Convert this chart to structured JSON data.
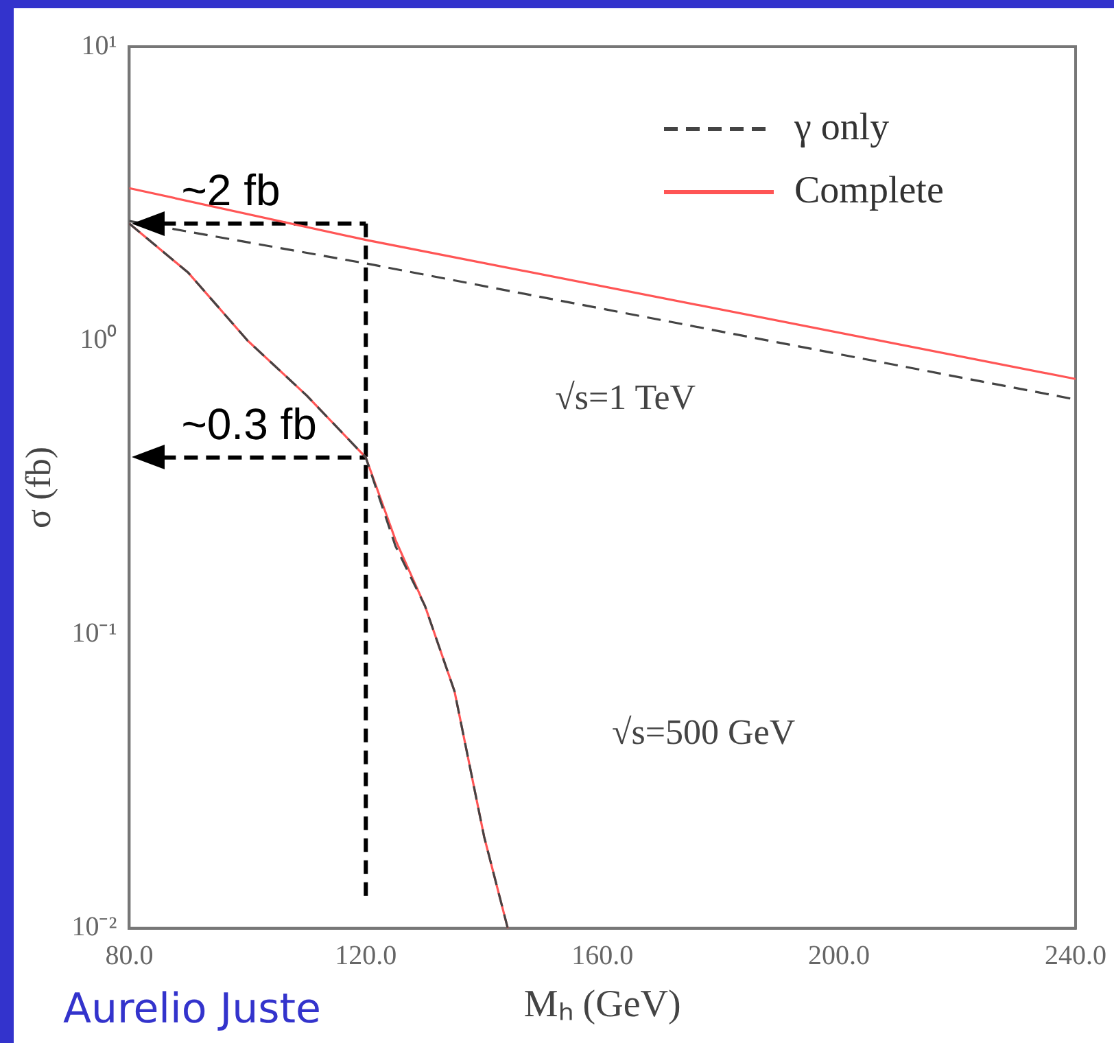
{
  "chart_data": {
    "type": "line",
    "xlabel": "Mₕ (GeV)",
    "ylabel": "σ (fb)",
    "log": "y",
    "grid": false,
    "legend": "top right",
    "marker": "none",
    "xlim": [
      80,
      240
    ],
    "xticks": [
      {
        "value": 80,
        "label": "80.0"
      },
      {
        "value": 120,
        "label": "120.0"
      },
      {
        "value": 160,
        "label": "160.0"
      },
      {
        "value": 200,
        "label": "200.0"
      },
      {
        "value": 240,
        "label": "240.0"
      }
    ],
    "ylim": [
      0.01,
      10
    ],
    "yticks": [
      {
        "value": 0.01,
        "label": "10⁻²"
      },
      {
        "value": 0.1,
        "label": "10⁻¹"
      },
      {
        "value": 1,
        "label": "10⁰"
      },
      {
        "value": 10,
        "label": "10¹"
      }
    ],
    "series": [
      {
        "name": "γ only",
        "color": "#444444",
        "line_style": "dashed",
        "x": [
          80,
          120,
          240
        ],
        "values": [
          2.55,
          1.83,
          0.63
        ]
      },
      {
        "name": "Complete",
        "color": "#ff5555",
        "line_style": "solid",
        "x": [
          80,
          120,
          240
        ],
        "values": [
          3.3,
          2.2,
          0.74
        ]
      },
      {
        "color": "#444444",
        "line_style": "dashed",
        "x": [
          80,
          90,
          100,
          110,
          120,
          125,
          130,
          135,
          140,
          144
        ],
        "values": [
          2.5,
          1.7,
          1.0,
          0.65,
          0.4,
          0.2,
          0.125,
          0.064,
          0.0205,
          0.01
        ]
      },
      {
        "color": "#ff5555",
        "line_style": "solid",
        "x": [
          80,
          90,
          100,
          110,
          120,
          125,
          130,
          135,
          140,
          144
        ],
        "values": [
          2.5,
          1.7,
          1.0,
          0.65,
          0.4,
          0.21,
          0.125,
          0.064,
          0.0205,
          0.01
        ]
      }
    ],
    "ref_lines": [
      {
        "axis": "y",
        "value": 2.5,
        "label": "~2 fb",
        "color": "#000000",
        "line_style": "dashed"
      },
      {
        "axis": "y",
        "value": 0.4,
        "label": "~0.3 fb",
        "color": "#000000",
        "line_style": "dashed"
      },
      {
        "axis": "x",
        "value": 120,
        "color": "#000000",
        "line_style": "dashed"
      }
    ],
    "annotations": [
      "√s=1 TeV",
      "√s=500 GeV",
      "Aurelio Juste"
    ]
  }
}
